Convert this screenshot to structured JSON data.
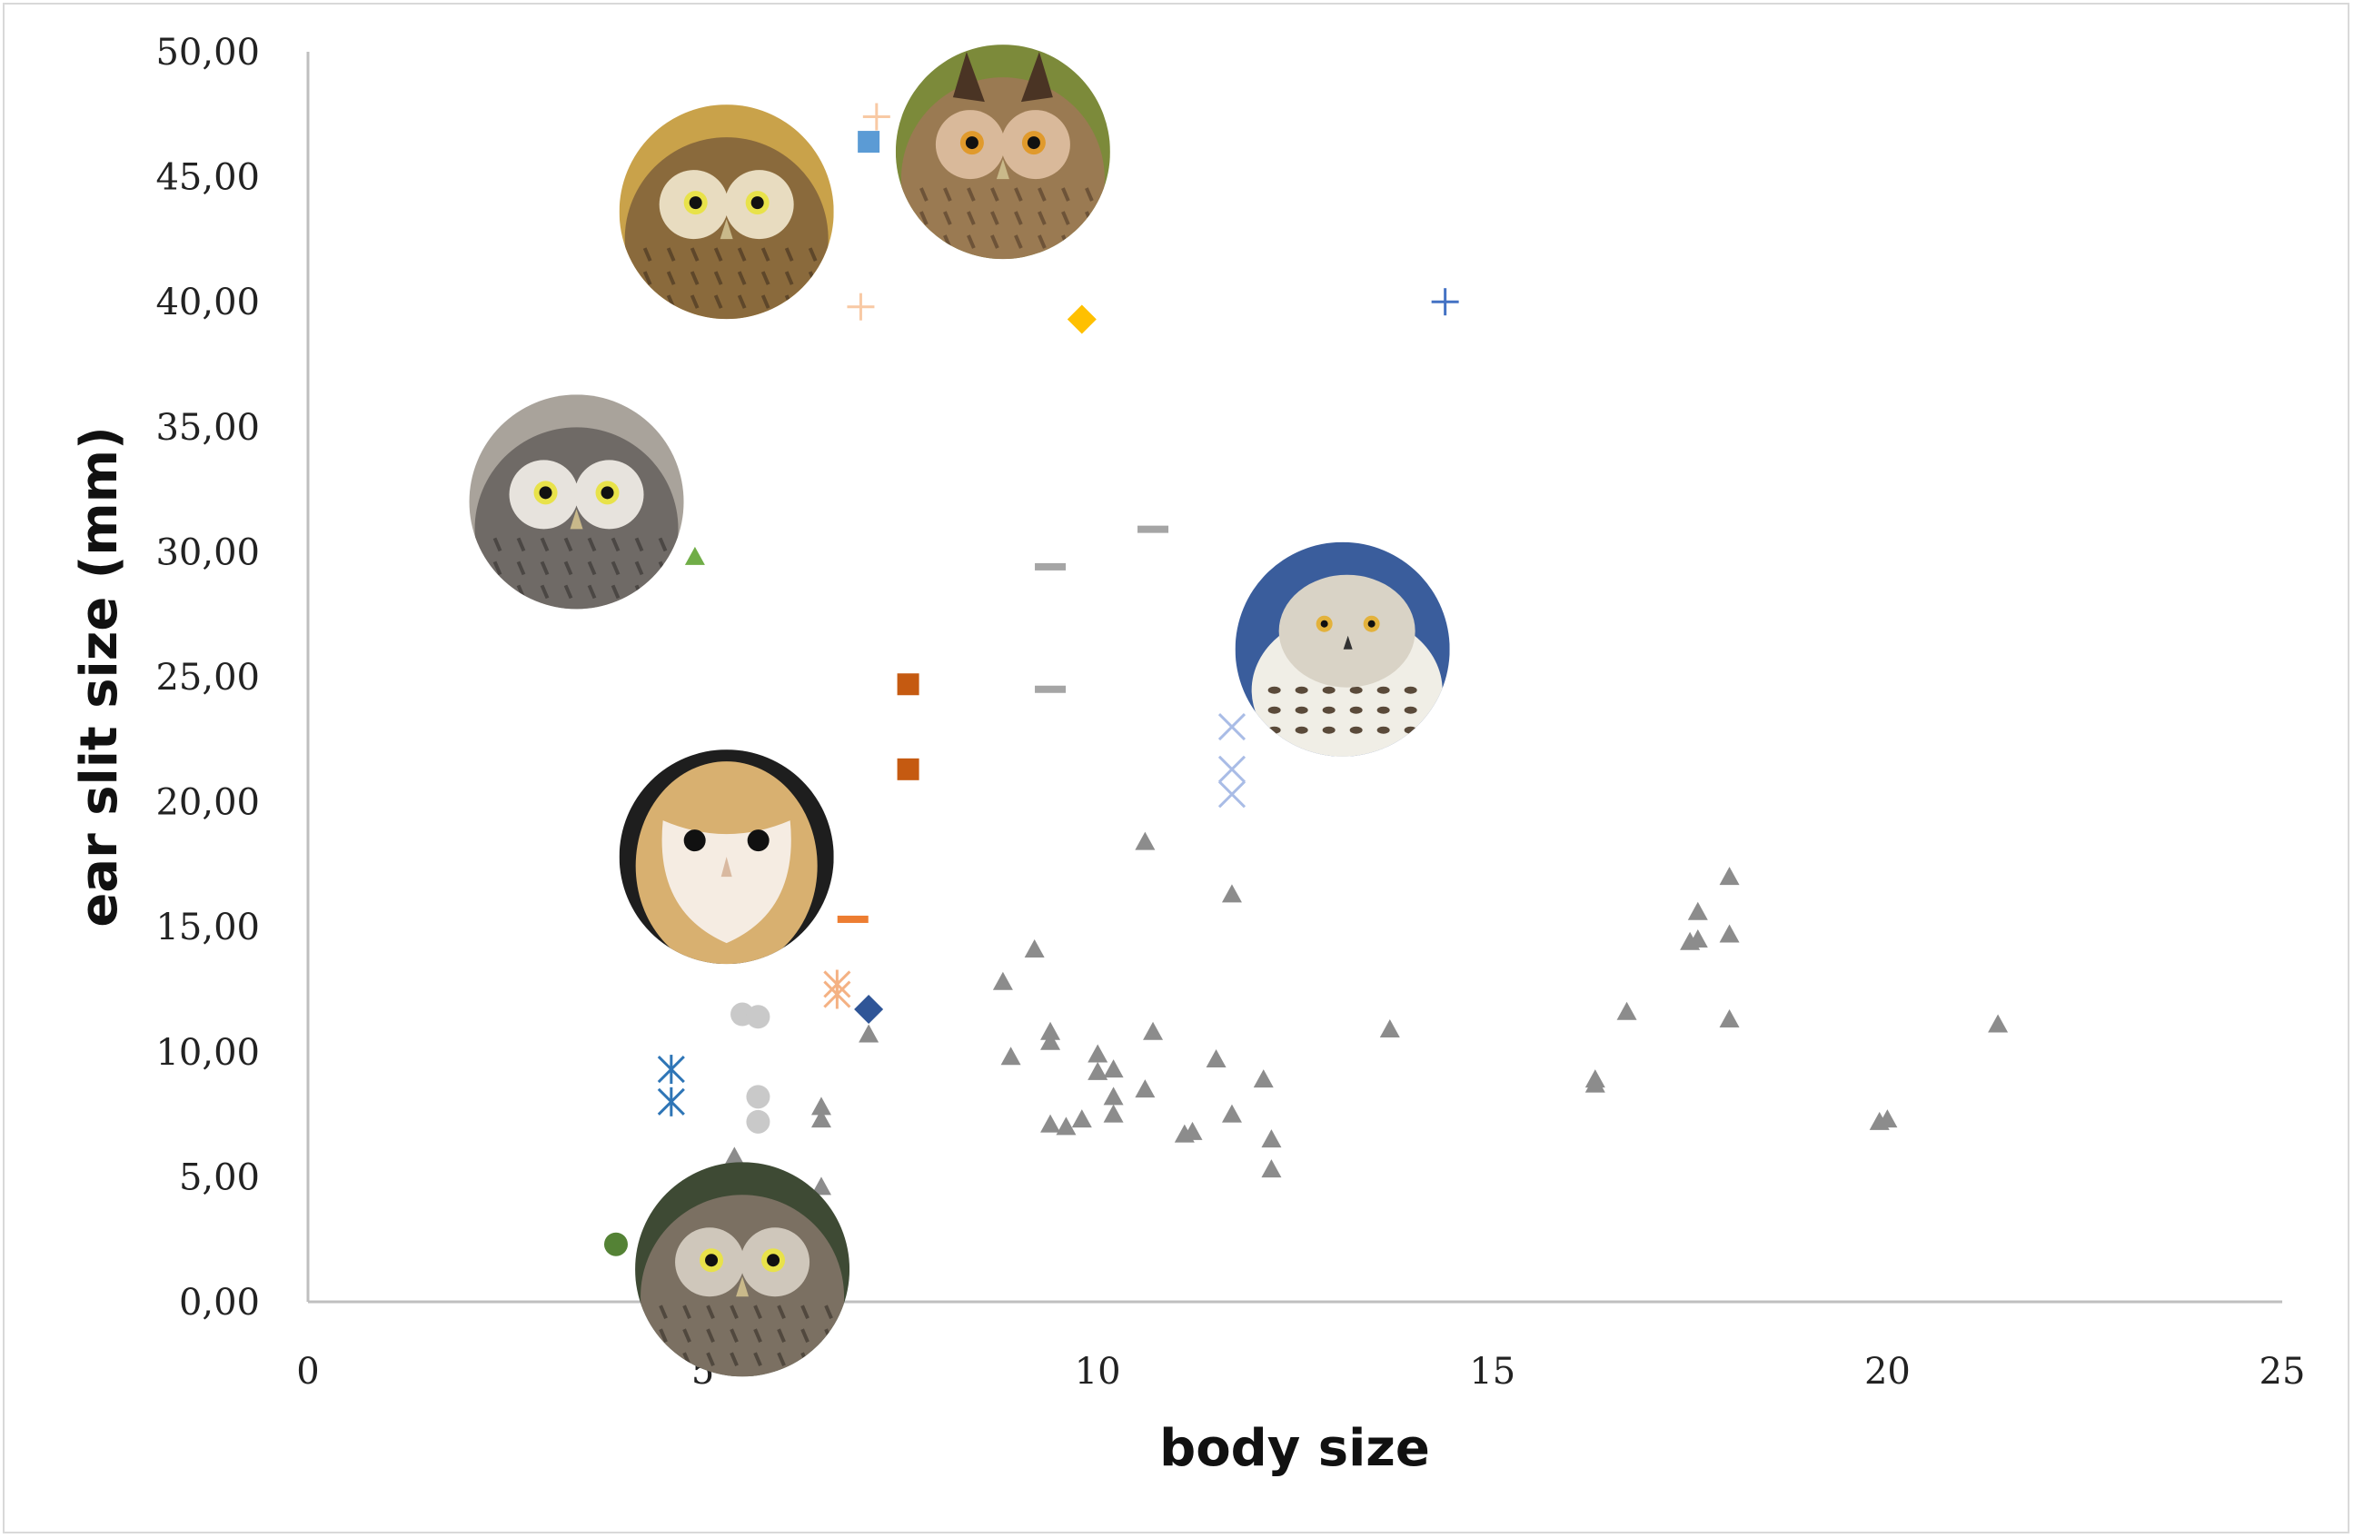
{
  "chart_data": {
    "type": "scatter",
    "title": "",
    "xlabel": "body size",
    "ylabel": "ear slit size (mm)",
    "xlim": [
      0,
      25
    ],
    "ylim": [
      0,
      50
    ],
    "x_ticks": [
      "0",
      "5",
      "10",
      "15",
      "20",
      "25"
    ],
    "y_ticks": [
      "0,00",
      "5,00",
      "10,00",
      "15,00",
      "20,00",
      "25,00",
      "30,00",
      "35,00",
      "40,00",
      "45,00",
      "50,00"
    ],
    "grid": false,
    "legend": "none",
    "series": [
      {
        "marker": "plus",
        "color": "#f8c9a4",
        "points": [
          [
            7.2,
            47.4
          ],
          [
            7.0,
            39.8
          ]
        ]
      },
      {
        "marker": "square",
        "color": "#5b9bd5",
        "points": [
          [
            7.1,
            46.4
          ]
        ]
      },
      {
        "marker": "diamond",
        "color": "#ffc000",
        "points": [
          [
            9.8,
            39.3
          ]
        ]
      },
      {
        "marker": "plus",
        "color": "#4472c4",
        "points": [
          [
            14.4,
            40.0
          ]
        ]
      },
      {
        "marker": "triangle",
        "color": "#70ad47",
        "points": [
          [
            4.9,
            29.8
          ]
        ]
      },
      {
        "marker": "dash",
        "color": "#a5a5a5",
        "points": [
          [
            10.7,
            30.9
          ],
          [
            9.4,
            29.4
          ],
          [
            9.4,
            24.5
          ]
        ]
      },
      {
        "marker": "square",
        "color": "#c55a11",
        "points": [
          [
            7.6,
            24.7
          ],
          [
            7.6,
            21.3
          ]
        ]
      },
      {
        "marker": "x",
        "color": "#a9bce6",
        "points": [
          [
            11.7,
            23.0
          ],
          [
            11.7,
            21.3
          ],
          [
            11.7,
            20.3
          ]
        ]
      },
      {
        "marker": "dash",
        "color": "#ed7d31",
        "points": [
          [
            6.9,
            15.3
          ]
        ]
      },
      {
        "marker": "asterisk",
        "color": "#f4b183",
        "points": [
          [
            6.7,
            12.7
          ],
          [
            6.7,
            12.3
          ]
        ]
      },
      {
        "marker": "diamond",
        "color": "#2f5597",
        "points": [
          [
            7.1,
            11.7
          ]
        ]
      },
      {
        "marker": "circle",
        "color": "#c9c9c9",
        "points": [
          [
            5.5,
            11.5
          ],
          [
            5.7,
            11.4
          ],
          [
            5.7,
            8.2
          ],
          [
            5.7,
            7.2
          ]
        ]
      },
      {
        "marker": "asterisk",
        "color": "#2e75b6",
        "points": [
          [
            4.6,
            9.3
          ],
          [
            4.6,
            8.0
          ]
        ]
      },
      {
        "marker": "circle",
        "color": "#548235",
        "points": [
          [
            3.9,
            2.3
          ]
        ]
      },
      {
        "marker": "triangle",
        "color": "#8c8c8c",
        "points": [
          [
            10.6,
            18.4
          ],
          [
            11.7,
            16.3
          ],
          [
            9.2,
            14.1
          ],
          [
            8.8,
            12.8
          ],
          [
            9.4,
            10.8
          ],
          [
            9.4,
            10.4
          ],
          [
            8.9,
            9.8
          ],
          [
            10.0,
            9.9
          ],
          [
            10.0,
            9.2
          ],
          [
            10.2,
            9.3
          ],
          [
            10.7,
            10.8
          ],
          [
            11.5,
            9.7
          ],
          [
            12.1,
            8.9
          ],
          [
            10.6,
            8.5
          ],
          [
            10.2,
            8.2
          ],
          [
            10.2,
            7.5
          ],
          [
            11.7,
            7.5
          ],
          [
            9.4,
            7.1
          ],
          [
            9.6,
            7.0
          ],
          [
            9.8,
            7.3
          ],
          [
            11.1,
            6.7
          ],
          [
            11.2,
            6.8
          ],
          [
            12.2,
            6.5
          ],
          [
            12.2,
            5.3
          ],
          [
            7.1,
            10.7
          ],
          [
            6.5,
            7.8
          ],
          [
            6.5,
            7.3
          ],
          [
            5.4,
            5.8
          ],
          [
            6.5,
            4.6
          ],
          [
            13.7,
            10.9
          ],
          [
            16.3,
            8.9
          ],
          [
            16.3,
            8.7
          ],
          [
            16.7,
            11.6
          ],
          [
            17.5,
            14.4
          ],
          [
            17.6,
            14.5
          ],
          [
            17.6,
            15.6
          ],
          [
            18.0,
            17.0
          ],
          [
            18.0,
            14.7
          ],
          [
            18.0,
            11.3
          ],
          [
            19.9,
            7.2
          ],
          [
            20.0,
            7.3
          ],
          [
            21.4,
            11.1
          ]
        ]
      }
    ]
  },
  "photos": [
    {
      "name": "short-eared-owl",
      "x": 5.3,
      "y": 43.6,
      "palette": [
        "#c9a24a",
        "#8a6a3c",
        "#e8dcc0",
        "#3b2a1c"
      ]
    },
    {
      "name": "long-eared-owl",
      "x": 8.8,
      "y": 46.0,
      "palette": [
        "#7c8a3a",
        "#9a7a52",
        "#d9b99a",
        "#4a3424"
      ]
    },
    {
      "name": "boreal-owl",
      "x": 3.4,
      "y": 32.0,
      "palette": [
        "#a9a39b",
        "#6f6a66",
        "#e7e3dd",
        "#2f2b29"
      ]
    },
    {
      "name": "snowy-owl",
      "x": 13.1,
      "y": 26.1,
      "palette": [
        "#3a5d9c",
        "#f0eee6",
        "#d9d3c6",
        "#5a4a3a"
      ]
    },
    {
      "name": "barn-owl",
      "x": 5.3,
      "y": 17.8,
      "palette": [
        "#1e1e1e",
        "#d8b070",
        "#f5ece2",
        "#8c6a40"
      ]
    },
    {
      "name": "pygmy-owl",
      "x": 5.5,
      "y": 1.3,
      "palette": [
        "#3e4a34",
        "#7b7062",
        "#cfc7bb",
        "#2f2822"
      ]
    }
  ]
}
